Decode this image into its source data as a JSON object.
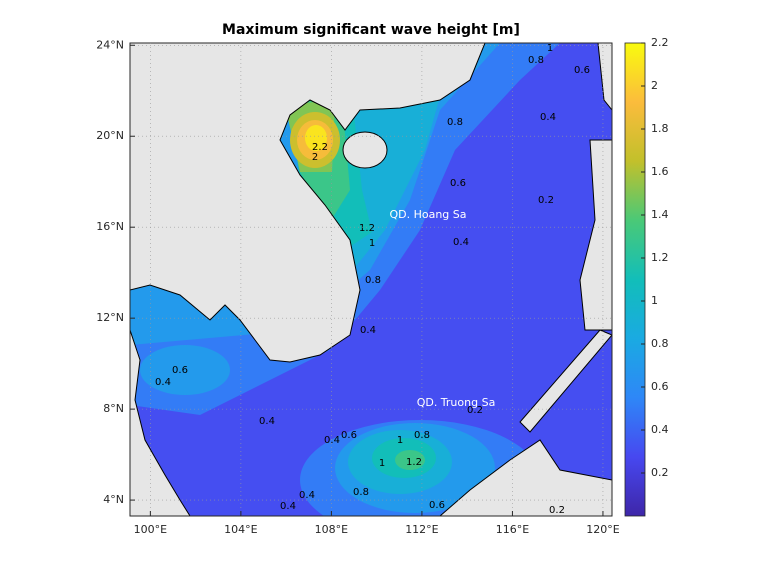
{
  "chart_data": {
    "type": "contour",
    "title": "Maximum significant wave height [m]",
    "xlim": [
      99.1,
      120.4
    ],
    "ylim": [
      3.3,
      24.1
    ],
    "xticks": [
      {
        "value": 100,
        "label": "100°E"
      },
      {
        "value": 104,
        "label": "104°E"
      },
      {
        "value": 108,
        "label": "108°E"
      },
      {
        "value": 112,
        "label": "112°E"
      },
      {
        "value": 116,
        "label": "116°E"
      },
      {
        "value": 120,
        "label": "120°E"
      }
    ],
    "yticks": [
      {
        "value": 4,
        "label": "4°N"
      },
      {
        "value": 8,
        "label": "8°N"
      },
      {
        "value": 12,
        "label": "12°N"
      },
      {
        "value": 16,
        "label": "16°N"
      },
      {
        "value": 20,
        "label": "20°N"
      },
      {
        "value": 24,
        "label": "24°N"
      }
    ],
    "grid": true,
    "colorbar": {
      "lim": [
        0,
        2.2
      ],
      "ticks": [
        0.2,
        0.4,
        0.6,
        0.8,
        1,
        1.2,
        1.4,
        1.6,
        1.8,
        2,
        2.2
      ]
    },
    "contour_labels": [
      0.8,
      0.6,
      0.4,
      0.8,
      0.4,
      0.6,
      0.4,
      0.4,
      0.2,
      0.4,
      0.6,
      1,
      0.8,
      1,
      1.2,
      0.8,
      0.6,
      0.4,
      0.2,
      2.2,
      2,
      1.2,
      1,
      0.4,
      0.4,
      0.2,
      0.6,
      0.8,
      1
    ],
    "annotations": [
      "QD. Hoang Sa",
      "QD. Truong Sa"
    ]
  }
}
